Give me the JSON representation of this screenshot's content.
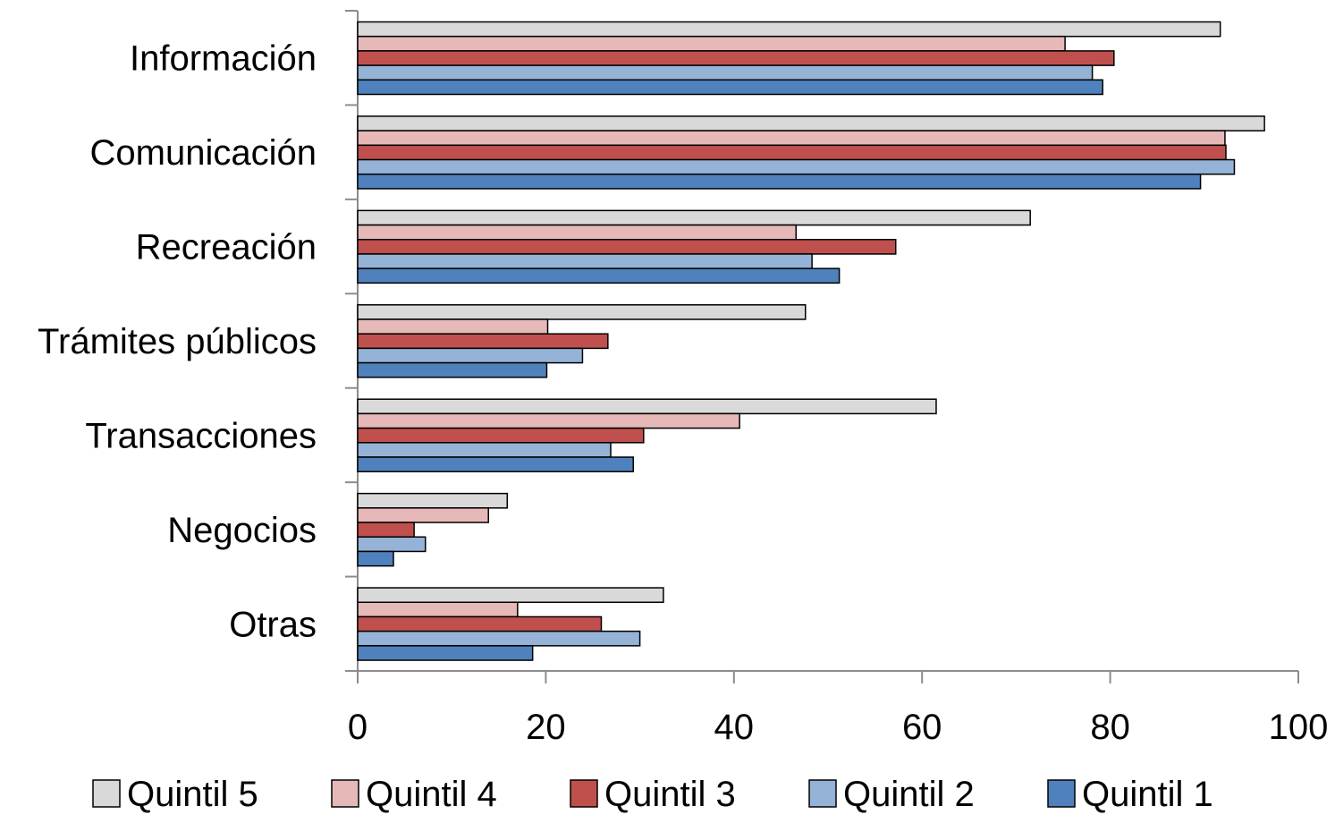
{
  "chart_data": {
    "type": "bar",
    "orientation": "horizontal",
    "title": "",
    "xlabel": "",
    "ylabel": "",
    "xlim": [
      0,
      100
    ],
    "x_ticks": [
      "0",
      "20",
      "40",
      "60",
      "80",
      "100"
    ],
    "grid": false,
    "legend_position": "bottom",
    "categories": [
      "Información",
      "Comunicación",
      "Recreación",
      "Trámites públicos",
      "Transacciones",
      "Negocios",
      "Otras"
    ],
    "series": [
      {
        "name": "Quintil 5",
        "color": "#d9d9d9",
        "values": [
          91.7,
          96.4,
          71.5,
          47.6,
          61.5,
          15.9,
          32.5
        ]
      },
      {
        "name": "Quintil 4",
        "color": "#e6b9b8",
        "values": [
          75.2,
          92.2,
          46.6,
          20.2,
          40.6,
          13.9,
          17.0
        ]
      },
      {
        "name": "Quintil 3",
        "color": "#c0504d",
        "values": [
          80.4,
          92.3,
          57.2,
          26.6,
          30.4,
          6.0,
          25.9
        ]
      },
      {
        "name": "Quintil 2",
        "color": "#95b3d7",
        "values": [
          78.1,
          93.2,
          48.3,
          23.9,
          26.9,
          7.2,
          30.0
        ]
      },
      {
        "name": "Quintil 1",
        "color": "#4f81bd",
        "values": [
          79.2,
          89.6,
          51.2,
          20.1,
          29.3,
          3.8,
          18.6
        ]
      }
    ]
  }
}
